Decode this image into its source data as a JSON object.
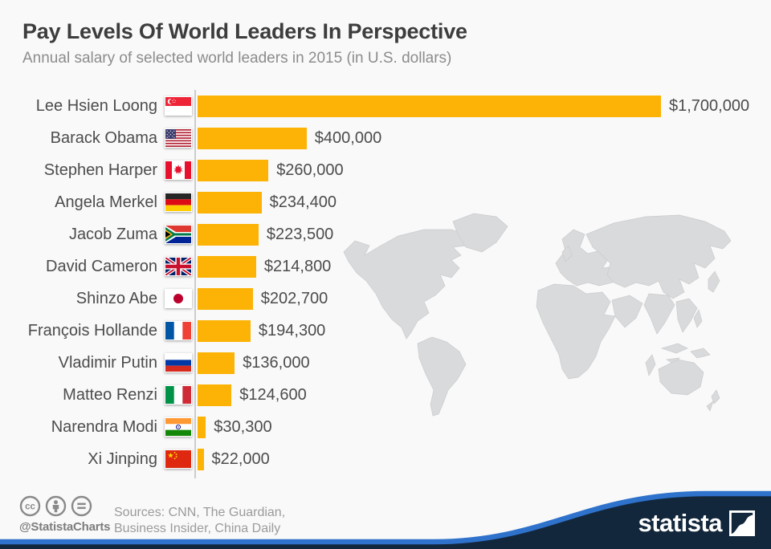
{
  "header": {
    "title": "Pay Levels Of World Leaders In Perspective",
    "subtitle": "Annual salary of selected world leaders in 2015 (in U.S. dollars)"
  },
  "chart_data": {
    "type": "bar",
    "orientation": "horizontal",
    "title": "Pay Levels Of World Leaders In Perspective",
    "subtitle": "Annual salary of selected world leaders in 2015 (in U.S. dollars)",
    "unit": "U.S. dollars",
    "xlim": [
      0,
      1700000
    ],
    "grid": false,
    "legend": "none",
    "categories": [
      "Lee Hsien Loong",
      "Barack Obama",
      "Stephen Harper",
      "Angela Merkel",
      "Jacob Zuma",
      "David Cameron",
      "Shinzo Abe",
      "François Hollande",
      "Vladimir Putin",
      "Matteo Renzi",
      "Narendra Modi",
      "Xi Jinping"
    ],
    "values": [
      1700000,
      400000,
      260000,
      234400,
      223500,
      214800,
      202700,
      194300,
      136000,
      124600,
      30300,
      22000
    ],
    "rows": [
      {
        "name": "Lee Hsien Loong",
        "country": "Singapore",
        "country_code": "sg",
        "value": 1700000,
        "value_label": "$1,700,000"
      },
      {
        "name": "Barack Obama",
        "country": "United States",
        "country_code": "us",
        "value": 400000,
        "value_label": "$400,000"
      },
      {
        "name": "Stephen Harper",
        "country": "Canada",
        "country_code": "ca",
        "value": 260000,
        "value_label": "$260,000"
      },
      {
        "name": "Angela Merkel",
        "country": "Germany",
        "country_code": "de",
        "value": 234400,
        "value_label": "$234,400"
      },
      {
        "name": "Jacob Zuma",
        "country": "South Africa",
        "country_code": "za",
        "value": 223500,
        "value_label": "$223,500"
      },
      {
        "name": "David Cameron",
        "country": "United Kingdom",
        "country_code": "gb",
        "value": 214800,
        "value_label": "$214,800"
      },
      {
        "name": "Shinzo Abe",
        "country": "Japan",
        "country_code": "jp",
        "value": 202700,
        "value_label": "$202,700"
      },
      {
        "name": "François Hollande",
        "country": "France",
        "country_code": "fr",
        "value": 194300,
        "value_label": "$194,300"
      },
      {
        "name": "Vladimir Putin",
        "country": "Russia",
        "country_code": "ru",
        "value": 136000,
        "value_label": "$136,000"
      },
      {
        "name": "Matteo Renzi",
        "country": "Italy",
        "country_code": "it",
        "value": 124600,
        "value_label": "$124,600"
      },
      {
        "name": "Narendra Modi",
        "country": "India",
        "country_code": "in",
        "value": 30300,
        "value_label": "$30,300"
      },
      {
        "name": "Xi Jinping",
        "country": "China",
        "country_code": "cn",
        "value": 22000,
        "value_label": "$22,000"
      }
    ]
  },
  "footer": {
    "handle": "@StatistaCharts",
    "sources_line1": "Sources: CNN, The Guardian,",
    "sources_line2": "Business Insider, China Daily",
    "brand": "statista",
    "license_icons": [
      "cc",
      "attribution",
      "no-derivatives"
    ]
  },
  "colors": {
    "bar": "#fcb305",
    "background": "#f9f9f9",
    "axis": "#cdcdcd",
    "map_gray": "#d9dadb",
    "accent_blue": "#2e72cc",
    "navy": "#13273c",
    "text_dark": "#3d3d3d",
    "text_gray": "#8c8c8c"
  }
}
